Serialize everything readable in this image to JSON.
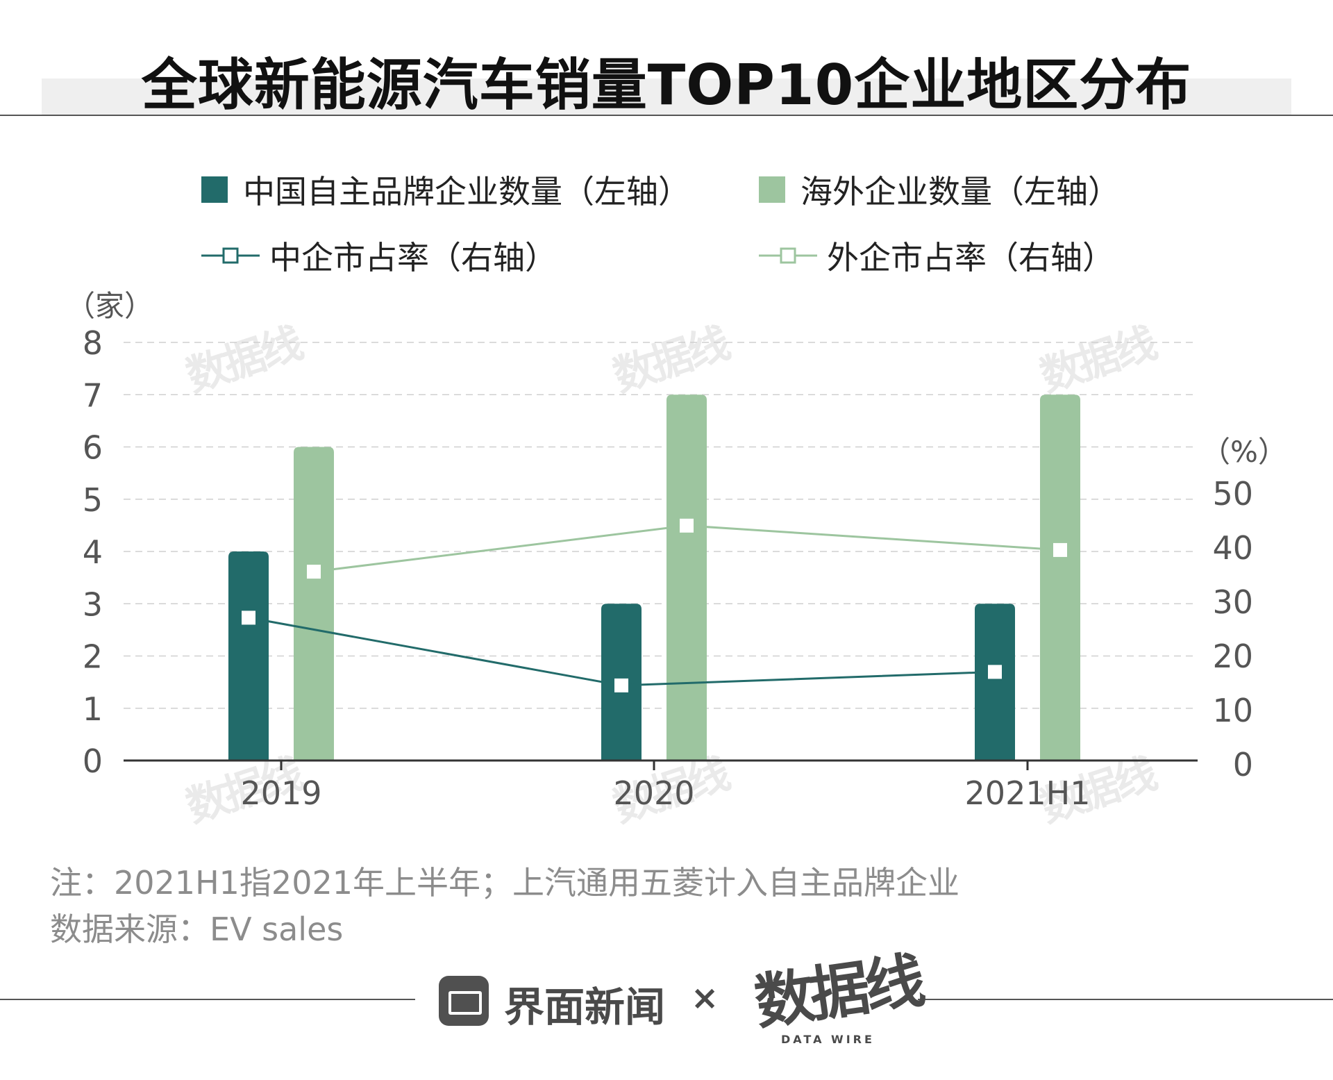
{
  "title": "全球新能源汽车销量TOP10企业地区分布",
  "legend": {
    "china_bar": "中国自主品牌企业数量（左轴）",
    "overseas_bar": "海外企业数量（左轴）",
    "china_line": "中企市占率（右轴）",
    "overseas_line": "外企市占率（右轴）"
  },
  "colors": {
    "china": "#226b6a",
    "overseas": "#9dc59f"
  },
  "chart_data": {
    "type": "bar",
    "categories": [
      "2019",
      "2020",
      "2021H1"
    ],
    "left_axis": {
      "unit_label": "（家）",
      "ticks": [
        "0",
        "1",
        "2",
        "3",
        "4",
        "5",
        "6",
        "7",
        "8"
      ],
      "ylim": [
        0,
        8
      ]
    },
    "right_axis": {
      "unit_label": "（%）",
      "ticks": [
        "0",
        "10",
        "20",
        "30",
        "40",
        "50"
      ],
      "ylim": [
        0,
        50
      ]
    },
    "series": [
      {
        "name": "中国自主品牌企业数量（左轴）",
        "type": "bar",
        "axis": "left",
        "values": [
          4,
          3,
          3
        ]
      },
      {
        "name": "海外企业数量（左轴）",
        "type": "bar",
        "axis": "left",
        "values": [
          6,
          7,
          7
        ]
      },
      {
        "name": "中企市占率（右轴）",
        "type": "line",
        "axis": "right",
        "values": [
          27,
          14.5,
          17
        ]
      },
      {
        "name": "外企市占率（右轴）",
        "type": "line",
        "axis": "right",
        "values": [
          35.5,
          44,
          39.5
        ]
      }
    ],
    "grid": true,
    "legend_position": "top"
  },
  "notes": {
    "note": "注：2021H1指2021年上半年；上汽通用五菱计入自主品牌企业",
    "source": "数据来源：EV sales"
  },
  "footer": {
    "brand": "界面新闻",
    "separator": "×",
    "partner": "数据线",
    "partner_sub": "DATA WIRE"
  },
  "watermark": "数据线"
}
